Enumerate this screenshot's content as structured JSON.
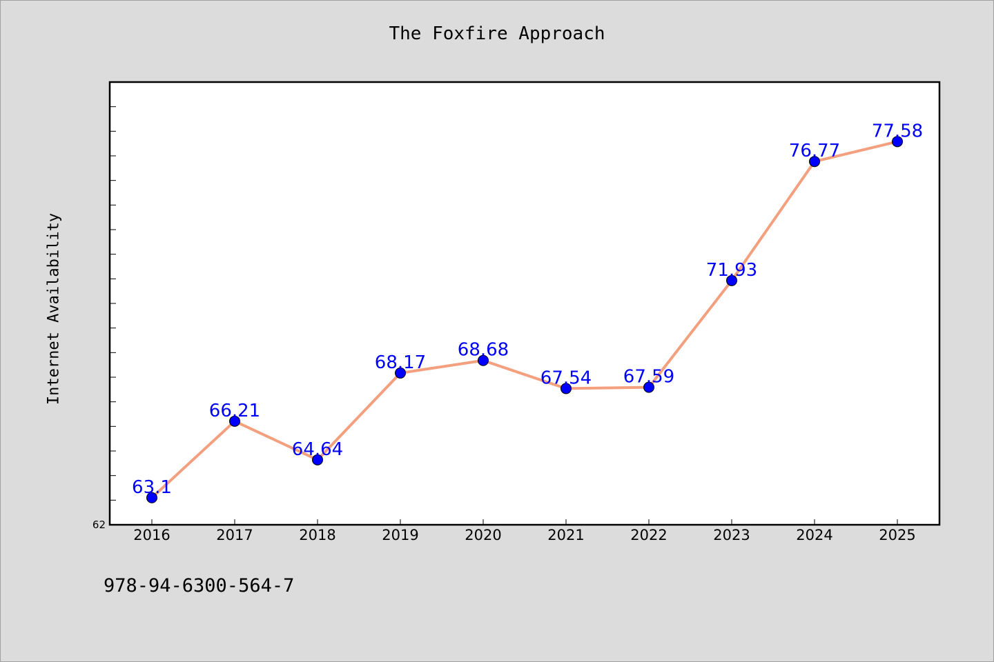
{
  "title": "The Foxfire Approach",
  "footer_text": "978-94-6300-564-7",
  "colors": {
    "background": "#dcdcdc",
    "plot_background": "#ffffff",
    "line": "#f4a07f",
    "marker": "#0000ff",
    "data_label": "#0000ff"
  },
  "chart_data": {
    "type": "line",
    "categories": [
      "2016",
      "2017",
      "2018",
      "2019",
      "2020",
      "2021",
      "2022",
      "2023",
      "2024",
      "2025"
    ],
    "series": [
      {
        "values": [
          63.1,
          66.21,
          64.64,
          68.17,
          68.68,
          67.54,
          67.59,
          71.93,
          76.77,
          77.58
        ],
        "labels": [
          "63.1",
          "66.21",
          "64.64",
          "68.17",
          "68.68",
          "67.54",
          "67.59",
          "71.93",
          "76.77",
          "77.58"
        ]
      }
    ],
    "ylabel": "Internet Availability",
    "xlabel": "",
    "ylim": [
      62,
      80
    ],
    "y_tick_labels": [
      "62"
    ],
    "y_minor_tick_step": 1,
    "grid": false,
    "markers": "circle",
    "data_labels": true
  }
}
